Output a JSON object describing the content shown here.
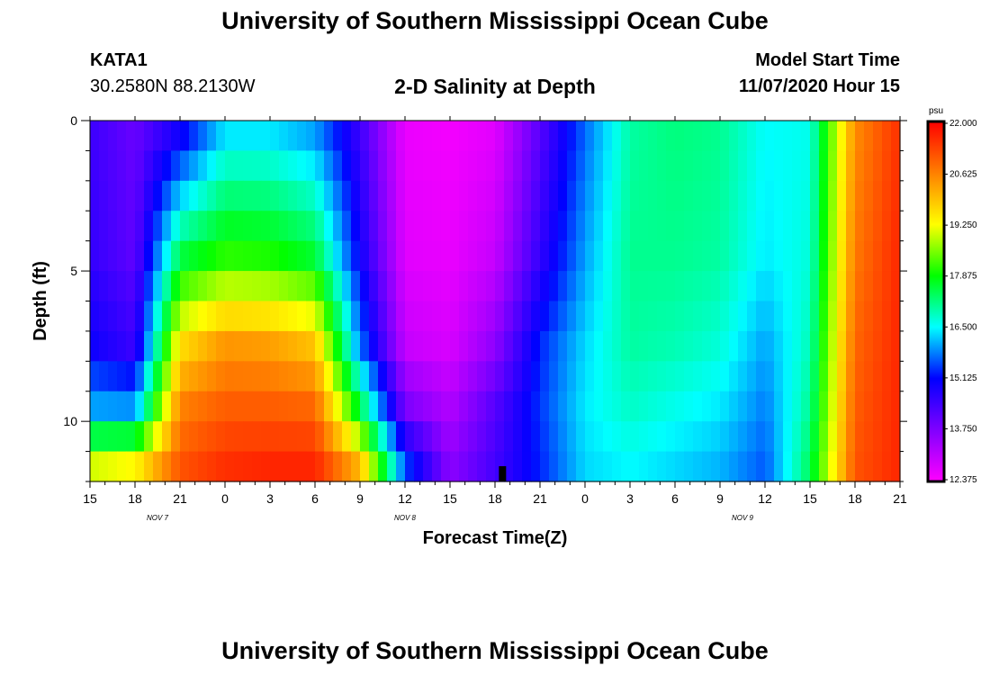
{
  "header": {
    "title": "University of Southern Mississippi Ocean Cube",
    "station": "KATA1",
    "coords": "30.2580N 88.2130W",
    "subtitle": "2-D Salinity at Depth",
    "model_start_label": "Model Start Time",
    "model_start_value": "11/07/2020 Hour 15"
  },
  "footer": {
    "title": "University of Southern Mississippi Ocean Cube"
  },
  "chart_data": {
    "type": "heatmap",
    "title": "2-D Salinity at Depth",
    "xlabel": "Forecast Time(Z)",
    "ylabel": "Depth (ft)",
    "x_ticks": [
      "15",
      "18",
      "21",
      "0",
      "3",
      "6",
      "9",
      "12",
      "15",
      "18",
      "21",
      "0",
      "3",
      "6",
      "9",
      "12",
      "15",
      "18",
      "21"
    ],
    "date_labels": [
      {
        "label": "NOV  7",
        "hour_index": 4.5
      },
      {
        "label": "NOV  8",
        "hour_index": 21
      },
      {
        "label": "NOV  9",
        "hour_index": 43.5
      }
    ],
    "x_range_hours": [
      0,
      54
    ],
    "y_ticks": [
      0,
      5,
      10
    ],
    "ylim": [
      0,
      12
    ],
    "colorbar": {
      "unit": "psu",
      "min": 12.375,
      "max": 22.0,
      "labels": [
        "22.000",
        "20.625",
        "19.250",
        "17.875",
        "16.500",
        "15.125",
        "13.750",
        "12.375"
      ]
    },
    "current_time_marker_hour": 27.5,
    "colors": {
      "12.375": "#ff00ff",
      "13.750": "#8000ff",
      "15.125": "#0000ff",
      "16.500": "#00ffff",
      "17.875": "#00ff00",
      "19.250": "#ffff00",
      "20.625": "#ff8000",
      "22.000": "#ff0000"
    },
    "grid": "off",
    "time_hours": [
      0,
      3,
      6,
      9,
      12,
      15,
      18,
      21,
      24,
      27,
      30,
      33,
      36,
      39,
      42,
      45,
      48,
      51,
      54
    ],
    "depth_levels_ft": [
      0.5,
      4.5,
      7.5,
      9.5,
      11.5
    ],
    "salinity_psu": [
      [
        14.5,
        14.0,
        15.0,
        16.4,
        16.4,
        16.0,
        14.5,
        12.6,
        12.5,
        12.7,
        14.2,
        15.7,
        17.0,
        17.2,
        17.1,
        16.5,
        16.6,
        20.5,
        21.5
      ],
      [
        14.6,
        14.1,
        17.5,
        18.1,
        18.0,
        17.6,
        15.0,
        12.7,
        12.6,
        13.0,
        14.6,
        16.0,
        17.1,
        17.1,
        17.0,
        16.4,
        16.7,
        20.7,
        21.6
      ],
      [
        15.0,
        14.5,
        19.6,
        20.4,
        20.3,
        19.9,
        15.8,
        13.0,
        12.8,
        13.6,
        15.3,
        16.3,
        17.0,
        16.9,
        16.7,
        16.0,
        16.9,
        20.9,
        21.6
      ],
      [
        16.0,
        15.9,
        20.6,
        21.0,
        21.0,
        20.9,
        17.5,
        13.8,
        13.2,
        14.2,
        15.4,
        16.4,
        16.8,
        16.6,
        16.4,
        15.8,
        17.1,
        21.0,
        21.6
      ],
      [
        19.0,
        19.3,
        21.1,
        21.5,
        21.6,
        21.6,
        20.0,
        15.5,
        13.6,
        14.4,
        15.3,
        16.3,
        16.5,
        16.3,
        16.1,
        15.6,
        17.4,
        21.1,
        21.6
      ]
    ]
  }
}
